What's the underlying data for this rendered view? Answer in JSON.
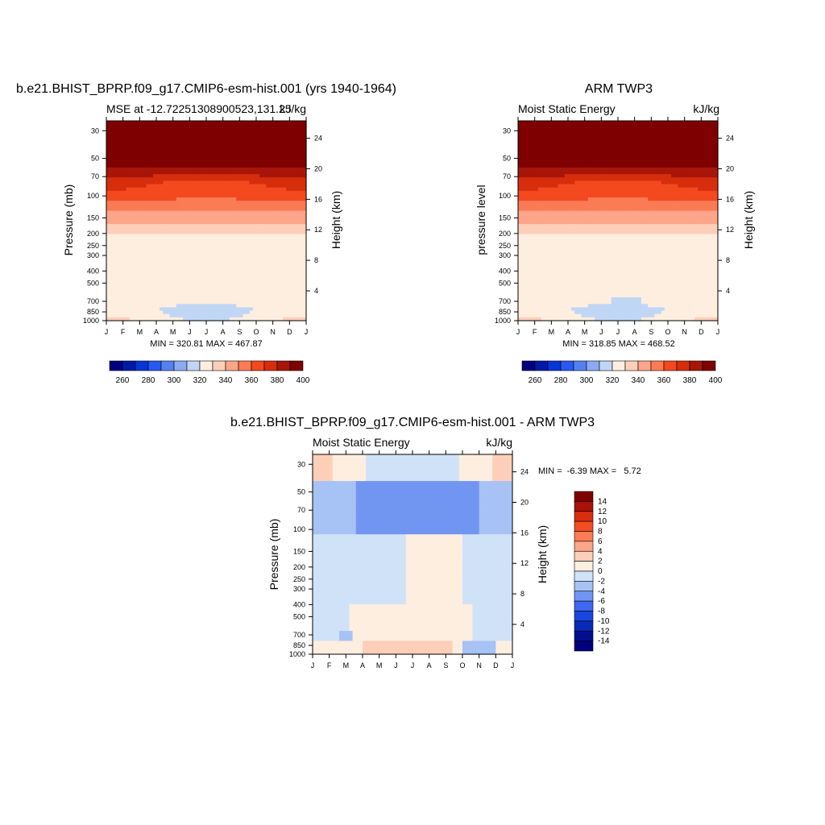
{
  "panels": [
    {
      "title": "b.e21.BHIST_BPRP.f09_g17.CMIP6-esm-hist.001 (yrs 1940-1964)",
      "left_label": "MSE at -12.72251308900523,131.25",
      "right_label": "kJ/kg",
      "ylabel": "Pressure (mb)",
      "ylabel_right": "Height (km)",
      "stats": "MIN = 320.81 MAX = 467.87"
    },
    {
      "title": "ARM TWP3",
      "left_label": "Moist Static Energy",
      "right_label": "kJ/kg",
      "ylabel": "pressure level",
      "ylabel_right": "Height (km)",
      "stats": "MIN = 318.85 MAX = 468.52"
    },
    {
      "title": "b.e21.BHIST_BPRP.f09_g17.CMIP6-esm-hist.001 - ARM TWP3",
      "left_label": "Moist Static Energy",
      "right_label": "kJ/kg",
      "ylabel": "Pressure (mb)",
      "ylabel_right": "Height (km)",
      "stats": "MIN =  -6.39 MAX =   5.72"
    }
  ],
  "chart_data": [
    {
      "type": "heatmap",
      "title": "b.e21.BHIST_BPRP.f09_g17.CMIP6-esm-hist.001 (yrs 1940-1964)",
      "subtitle": "MSE at -12.72251308900523,131.25",
      "units": "kJ/kg",
      "xlabel": "",
      "ylabel": "Pressure (mb)",
      "ylabel_right": "Height (km)",
      "x_ticks": [
        "J",
        "F",
        "M",
        "A",
        "M",
        "J",
        "J",
        "A",
        "S",
        "O",
        "N",
        "D",
        "J"
      ],
      "y_ticks": [
        30,
        50,
        70,
        100,
        150,
        200,
        250,
        300,
        400,
        500,
        700,
        850,
        1000
      ],
      "y_right_ticks": [
        4,
        8,
        12,
        16,
        20,
        24
      ],
      "y_scale": "log",
      "ylim": [
        1000,
        25
      ],
      "colorbar_ticks": [
        260,
        280,
        300,
        320,
        340,
        360,
        380,
        400
      ],
      "min": 320.81,
      "max": 467.87
    },
    {
      "type": "heatmap",
      "title": "ARM TWP3",
      "subtitle": "Moist Static Energy",
      "units": "kJ/kg",
      "xlabel": "",
      "ylabel": "pressure level",
      "ylabel_right": "Height (km)",
      "x_ticks": [
        "J",
        "F",
        "M",
        "A",
        "M",
        "J",
        "J",
        "A",
        "S",
        "O",
        "N",
        "D",
        "J"
      ],
      "y_ticks": [
        30,
        50,
        70,
        100,
        150,
        200,
        250,
        300,
        400,
        500,
        700,
        850,
        1000
      ],
      "y_right_ticks": [
        4,
        8,
        12,
        16,
        20,
        24
      ],
      "y_scale": "log",
      "ylim": [
        1000,
        25
      ],
      "colorbar_ticks": [
        260,
        280,
        300,
        320,
        340,
        360,
        380,
        400
      ],
      "min": 318.85,
      "max": 468.52
    },
    {
      "type": "heatmap",
      "title": "b.e21.BHIST_BPRP.f09_g17.CMIP6-esm-hist.001 - ARM TWP3",
      "subtitle": "Moist Static Energy",
      "units": "kJ/kg",
      "xlabel": "",
      "ylabel": "Pressure (mb)",
      "ylabel_right": "Height (km)",
      "x_ticks": [
        "J",
        "F",
        "M",
        "A",
        "M",
        "J",
        "J",
        "A",
        "S",
        "O",
        "N",
        "D",
        "J"
      ],
      "y_ticks": [
        30,
        50,
        70,
        100,
        150,
        200,
        250,
        300,
        400,
        500,
        700,
        850,
        1000
      ],
      "y_right_ticks": [
        4,
        8,
        12,
        16,
        20,
        24
      ],
      "y_scale": "log",
      "ylim": [
        1000,
        25
      ],
      "colorbar_ticks": [
        14,
        12,
        10,
        8,
        6,
        4,
        2,
        0,
        -2,
        -4,
        -6,
        -8,
        -10,
        -12,
        -14
      ],
      "min": -6.39,
      "max": 5.72
    }
  ],
  "palettes": {
    "mse": [
      "#00007f",
      "#0019a8",
      "#0536d6",
      "#2859f0",
      "#5580f2",
      "#8caaf2",
      "#c0d6f5",
      "#fdeee0",
      "#fdcfb8",
      "#fca588",
      "#fb7b55",
      "#f4481f",
      "#d62e0c",
      "#a71608",
      "#7f0000"
    ],
    "diff": [
      "#7f0000",
      "#aa1108",
      "#d92e0d",
      "#f24d20",
      "#fb7c55",
      "#fca588",
      "#fdcfb8",
      "#fdeee0",
      "#d0e2f7",
      "#a7c2f4",
      "#7196f2",
      "#3f68f0",
      "#1a46e0",
      "#0a2ab8",
      "#030e8e",
      "#00007f"
    ]
  }
}
